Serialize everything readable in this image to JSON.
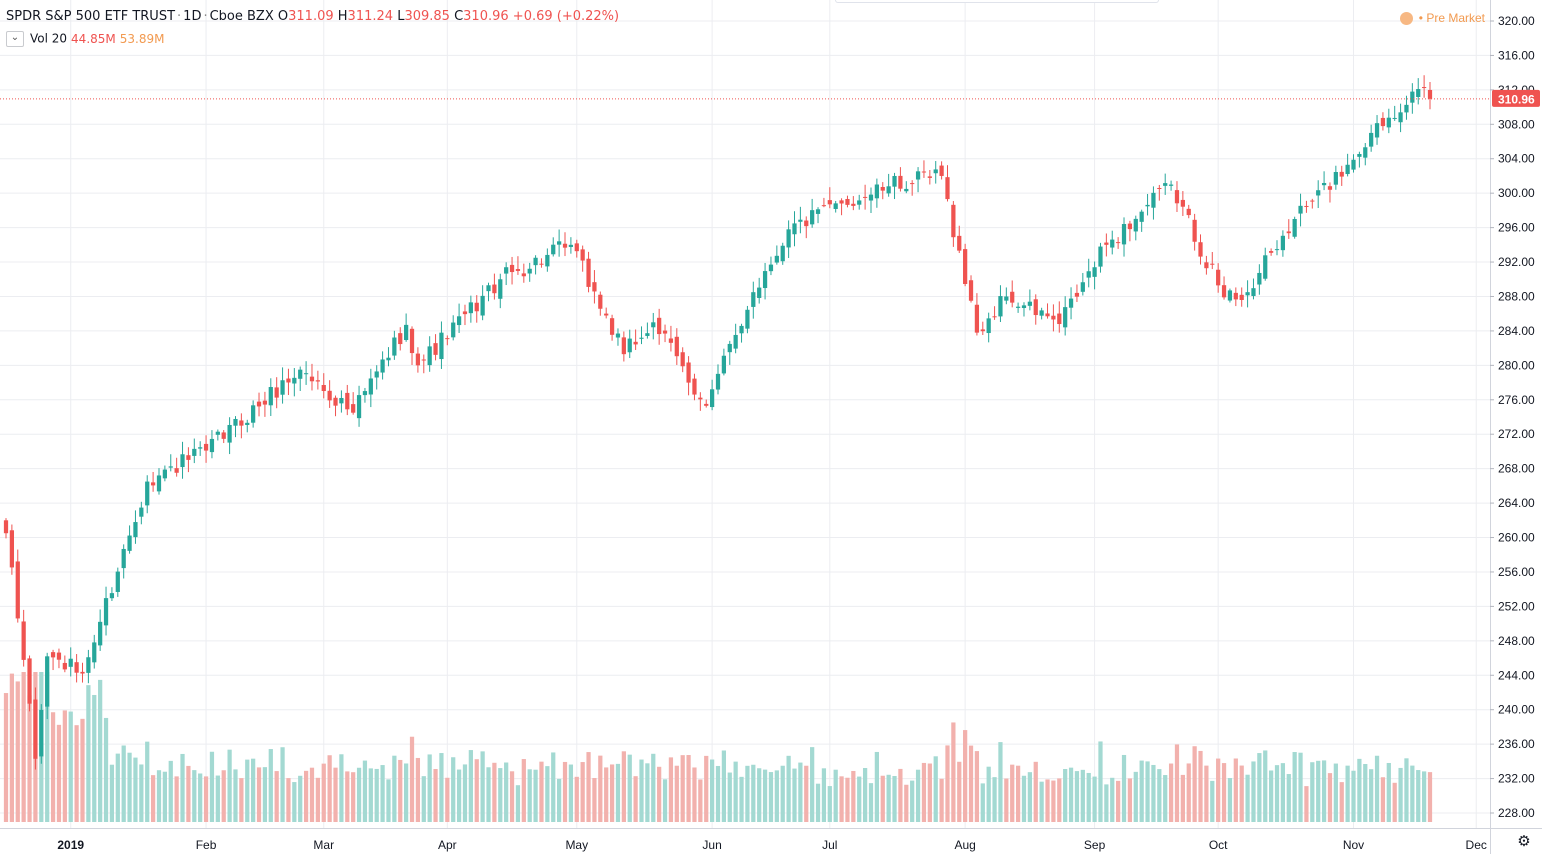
{
  "header": {
    "symbol_title": "SPDR S&P 500 ETF TRUST",
    "interval": "1D",
    "exchange": "Cboe BZX",
    "open_label": "O",
    "open": "311.09",
    "high_label": "H",
    "high": "311.24",
    "low_label": "L",
    "low": "309.85",
    "close_label": "C",
    "close": "310.96",
    "change": "+0.69 (+0.22%)"
  },
  "volume_legend": {
    "label": "Vol 20",
    "value": "44.85M",
    "ma_value": "53.89M"
  },
  "session": {
    "label": "Pre Market",
    "dot": "•"
  },
  "colors": {
    "up": "#26a69a",
    "down": "#ef5350",
    "up_volume": "#a3d9d2",
    "down_volume": "#f2b1ad",
    "grid": "#ecedf1",
    "price_line": "#ef5350",
    "premarket": "#f29a50"
  },
  "icons": {
    "collapse": "chevron-down-icon",
    "settings": "gear-icon"
  },
  "chart_data": {
    "type": "candlestick",
    "y_axis_ticks": [
      "320.00",
      "316.00",
      "312.00",
      "308.00",
      "304.00",
      "300.00",
      "296.00",
      "292.00",
      "288.00",
      "284.00",
      "280.00",
      "276.00",
      "272.00",
      "268.00",
      "264.00",
      "260.00",
      "256.00",
      "252.00",
      "248.00",
      "244.00",
      "240.00",
      "236.00",
      "232.00",
      "228.00"
    ],
    "x_axis_ticks": [
      "2019",
      "Feb",
      "Mar",
      "Apr",
      "May",
      "Jun",
      "Jul",
      "Aug",
      "Sep",
      "Oct",
      "Nov",
      "Dec"
    ],
    "ylim": [
      227,
      322
    ],
    "last_price_label": "310.96",
    "anchors": [
      {
        "date": "2018-12-17",
        "close": 260.5
      },
      {
        "date": "2018-12-21",
        "close": 240.7
      },
      {
        "date": "2018-12-24",
        "close": 234.3
      },
      {
        "date": "2018-12-26",
        "close": 246.2
      },
      {
        "date": "2019-01-03",
        "close": 244.2
      },
      {
        "date": "2019-01-18",
        "close": 266.5
      },
      {
        "date": "2019-02-01",
        "close": 270.1
      },
      {
        "date": "2019-02-25",
        "close": 279.5
      },
      {
        "date": "2019-03-08",
        "close": 274.5
      },
      {
        "date": "2019-03-21",
        "close": 284.7
      },
      {
        "date": "2019-03-25",
        "close": 280.0
      },
      {
        "date": "2019-04-12",
        "close": 290.0
      },
      {
        "date": "2019-04-30",
        "close": 294.0
      },
      {
        "date": "2019-05-13",
        "close": 281.3
      },
      {
        "date": "2019-05-20",
        "close": 285.0
      },
      {
        "date": "2019-05-31",
        "close": 275.3
      },
      {
        "date": "2019-06-12",
        "close": 288.5
      },
      {
        "date": "2019-06-20",
        "close": 295.8
      },
      {
        "date": "2019-07-03",
        "close": 298.8
      },
      {
        "date": "2019-07-15",
        "close": 300.8
      },
      {
        "date": "2019-07-26",
        "close": 302.0
      },
      {
        "date": "2019-08-05",
        "close": 283.8
      },
      {
        "date": "2019-08-12",
        "close": 288.0
      },
      {
        "date": "2019-08-23",
        "close": 284.8
      },
      {
        "date": "2019-09-04",
        "close": 294.0
      },
      {
        "date": "2019-09-19",
        "close": 301.0
      },
      {
        "date": "2019-10-02",
        "close": 287.9
      },
      {
        "date": "2019-10-08",
        "close": 288.5
      },
      {
        "date": "2019-10-18",
        "close": 297.0
      },
      {
        "date": "2019-10-31",
        "close": 303.3
      },
      {
        "date": "2019-11-06",
        "close": 307.0
      },
      {
        "date": "2019-11-15",
        "close": 311.8
      },
      {
        "date": "2019-11-20",
        "close": 310.96
      }
    ]
  }
}
